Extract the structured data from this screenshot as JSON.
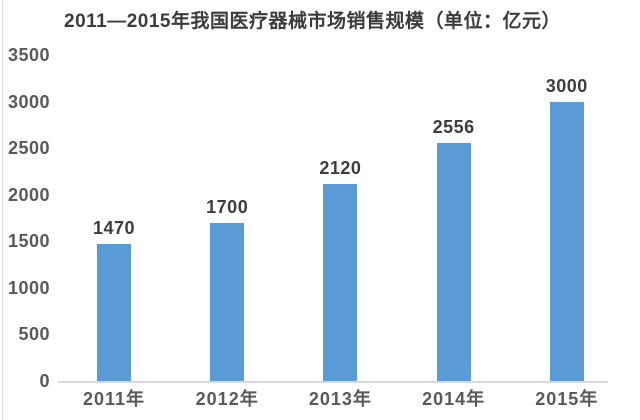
{
  "chart_data": {
    "type": "bar",
    "title": "2011—2015年我国医疗器械市场销售规模（单位：亿元）",
    "categories": [
      "2011年",
      "2012年",
      "2013年",
      "2014年",
      "2015年"
    ],
    "values": [
      1470,
      1700,
      2120,
      2556,
      3000
    ],
    "data_labels": [
      "1470",
      "1700",
      "2120",
      "2556",
      "3000"
    ],
    "unit": "亿元",
    "xlabel": "",
    "ylabel": "",
    "ylim": [
      0,
      3500
    ],
    "yticks": [
      0,
      500,
      1000,
      1500,
      2000,
      2500,
      3000,
      3500
    ],
    "grid": false,
    "legend_position": "none",
    "colors": {
      "bar": "#5b9bd5",
      "title_text": "#3c3c3c",
      "tick_text": "#595959",
      "data_label_text": "#3d3d3d",
      "axis_line": "#d9d9d9",
      "background": "#ffffff",
      "left_edge_line": "#dcdcdc"
    }
  }
}
